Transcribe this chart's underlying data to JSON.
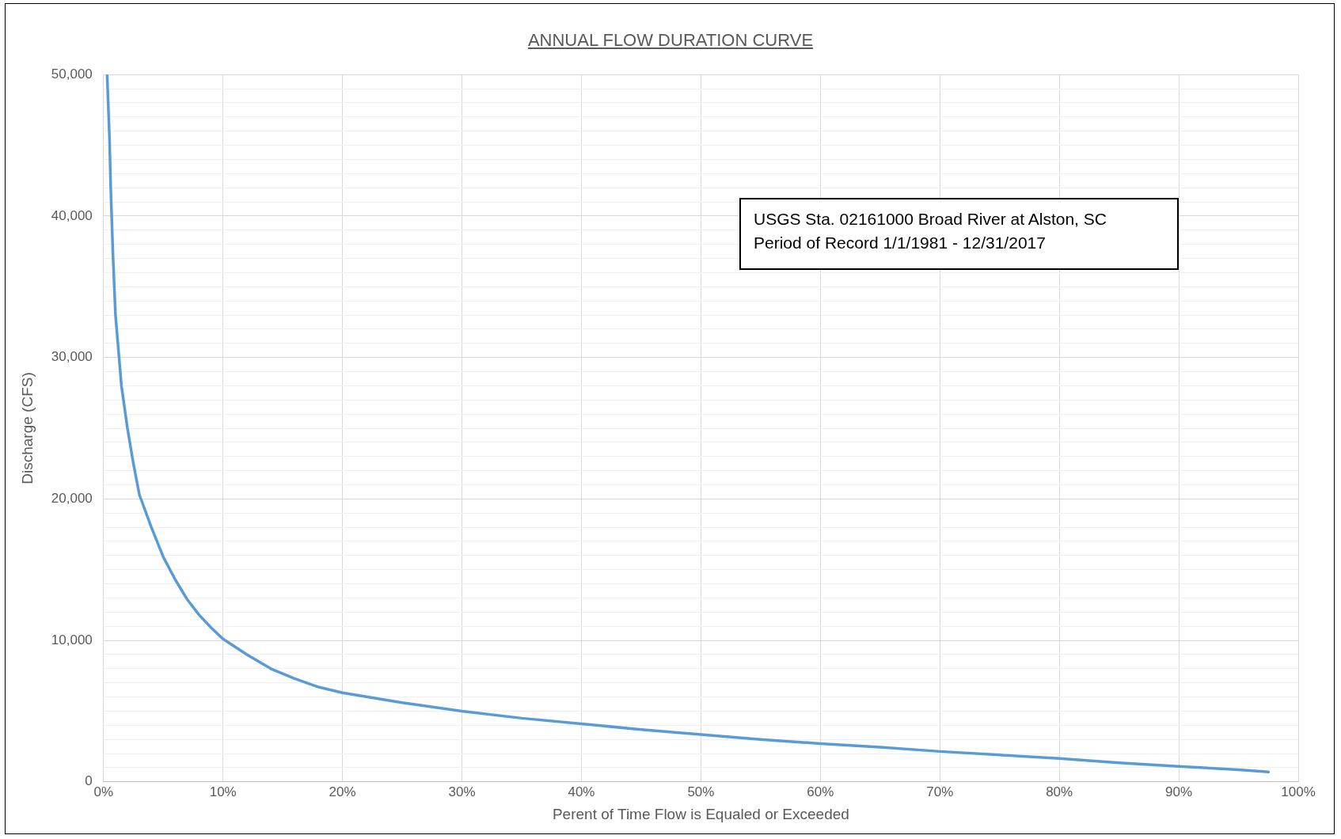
{
  "chart_data": {
    "type": "line",
    "title": "ANNUAL FLOW DURATION CURVE",
    "xlabel": "Perent of Time Flow is Equaled or Exceeded",
    "ylabel": "Discharge (CFS)",
    "annotations": [
      "USGS Sta. 02161000 Broad River at Alston, SC",
      "Period of Record 1/1/1981 - 12/31/2017"
    ],
    "series": [
      {
        "color": "#5b9bd5",
        "x": [
          0.3,
          0.5,
          0.6,
          0.8,
          1.0,
          1.5,
          2,
          2.5,
          3,
          4,
          5,
          6,
          7,
          8,
          9,
          10,
          12,
          14,
          16,
          18,
          20,
          25,
          30,
          35,
          40,
          45,
          50,
          55,
          60,
          65,
          70,
          75,
          80,
          85,
          90,
          95,
          97.5
        ],
        "values": [
          50000,
          45500,
          42000,
          37000,
          33000,
          28000,
          25000,
          22500,
          20300,
          18000,
          15900,
          14300,
          12900,
          11800,
          10900,
          10100,
          9000,
          8000,
          7300,
          6700,
          6300,
          5600,
          5000,
          4500,
          4100,
          3700,
          3350,
          3000,
          2700,
          2450,
          2150,
          1900,
          1650,
          1350,
          1100,
          850,
          700
        ]
      }
    ],
    "xlim": [
      0,
      100
    ],
    "xticks": [
      {
        "value": 0,
        "label": "0%"
      },
      {
        "value": 10,
        "label": "10%"
      },
      {
        "value": 20,
        "label": "20%"
      },
      {
        "value": 30,
        "label": "30%"
      },
      {
        "value": 40,
        "label": "40%"
      },
      {
        "value": 50,
        "label": "50%"
      },
      {
        "value": 60,
        "label": "60%"
      },
      {
        "value": 70,
        "label": "70%"
      },
      {
        "value": 80,
        "label": "80%"
      },
      {
        "value": 90,
        "label": "90%"
      },
      {
        "value": 100,
        "label": "100%"
      }
    ],
    "ylim": [
      0,
      50000
    ],
    "yticks": [
      {
        "value": 0,
        "label": "0"
      },
      {
        "value": 1000,
        "label": null
      },
      {
        "value": 2000,
        "label": null
      },
      {
        "value": 3000,
        "label": null
      },
      {
        "value": 4000,
        "label": null
      },
      {
        "value": 5000,
        "label": null
      },
      {
        "value": 6000,
        "label": null
      },
      {
        "value": 7000,
        "label": null
      },
      {
        "value": 8000,
        "label": null
      },
      {
        "value": 9000,
        "label": null
      },
      {
        "value": 10000,
        "label": "10,000"
      },
      {
        "value": 11000,
        "label": null
      },
      {
        "value": 12000,
        "label": null
      },
      {
        "value": 13000,
        "label": null
      },
      {
        "value": 14000,
        "label": null
      },
      {
        "value": 15000,
        "label": null
      },
      {
        "value": 16000,
        "label": null
      },
      {
        "value": 17000,
        "label": null
      },
      {
        "value": 18000,
        "label": null
      },
      {
        "value": 19000,
        "label": null
      },
      {
        "value": 20000,
        "label": "20,000"
      },
      {
        "value": 21000,
        "label": null
      },
      {
        "value": 22000,
        "label": null
      },
      {
        "value": 23000,
        "label": null
      },
      {
        "value": 24000,
        "label": null
      },
      {
        "value": 25000,
        "label": null
      },
      {
        "value": 26000,
        "label": null
      },
      {
        "value": 27000,
        "label": null
      },
      {
        "value": 28000,
        "label": null
      },
      {
        "value": 29000,
        "label": null
      },
      {
        "value": 30000,
        "label": "30,000"
      },
      {
        "value": 31000,
        "label": null
      },
      {
        "value": 32000,
        "label": null
      },
      {
        "value": 33000,
        "label": null
      },
      {
        "value": 34000,
        "label": null
      },
      {
        "value": 35000,
        "label": null
      },
      {
        "value": 36000,
        "label": null
      },
      {
        "value": 37000,
        "label": null
      },
      {
        "value": 38000,
        "label": null
      },
      {
        "value": 39000,
        "label": null
      },
      {
        "value": 40000,
        "label": "40,000"
      },
      {
        "value": 41000,
        "label": null
      },
      {
        "value": 42000,
        "label": null
      },
      {
        "value": 43000,
        "label": null
      },
      {
        "value": 44000,
        "label": null
      },
      {
        "value": 45000,
        "label": null
      },
      {
        "value": 46000,
        "label": null
      },
      {
        "value": 47000,
        "label": null
      },
      {
        "value": 48000,
        "label": null
      },
      {
        "value": 49000,
        "label": null
      },
      {
        "value": 50000,
        "label": "50,000"
      }
    ],
    "grid": true,
    "marker": "none",
    "line_style": "solid"
  }
}
